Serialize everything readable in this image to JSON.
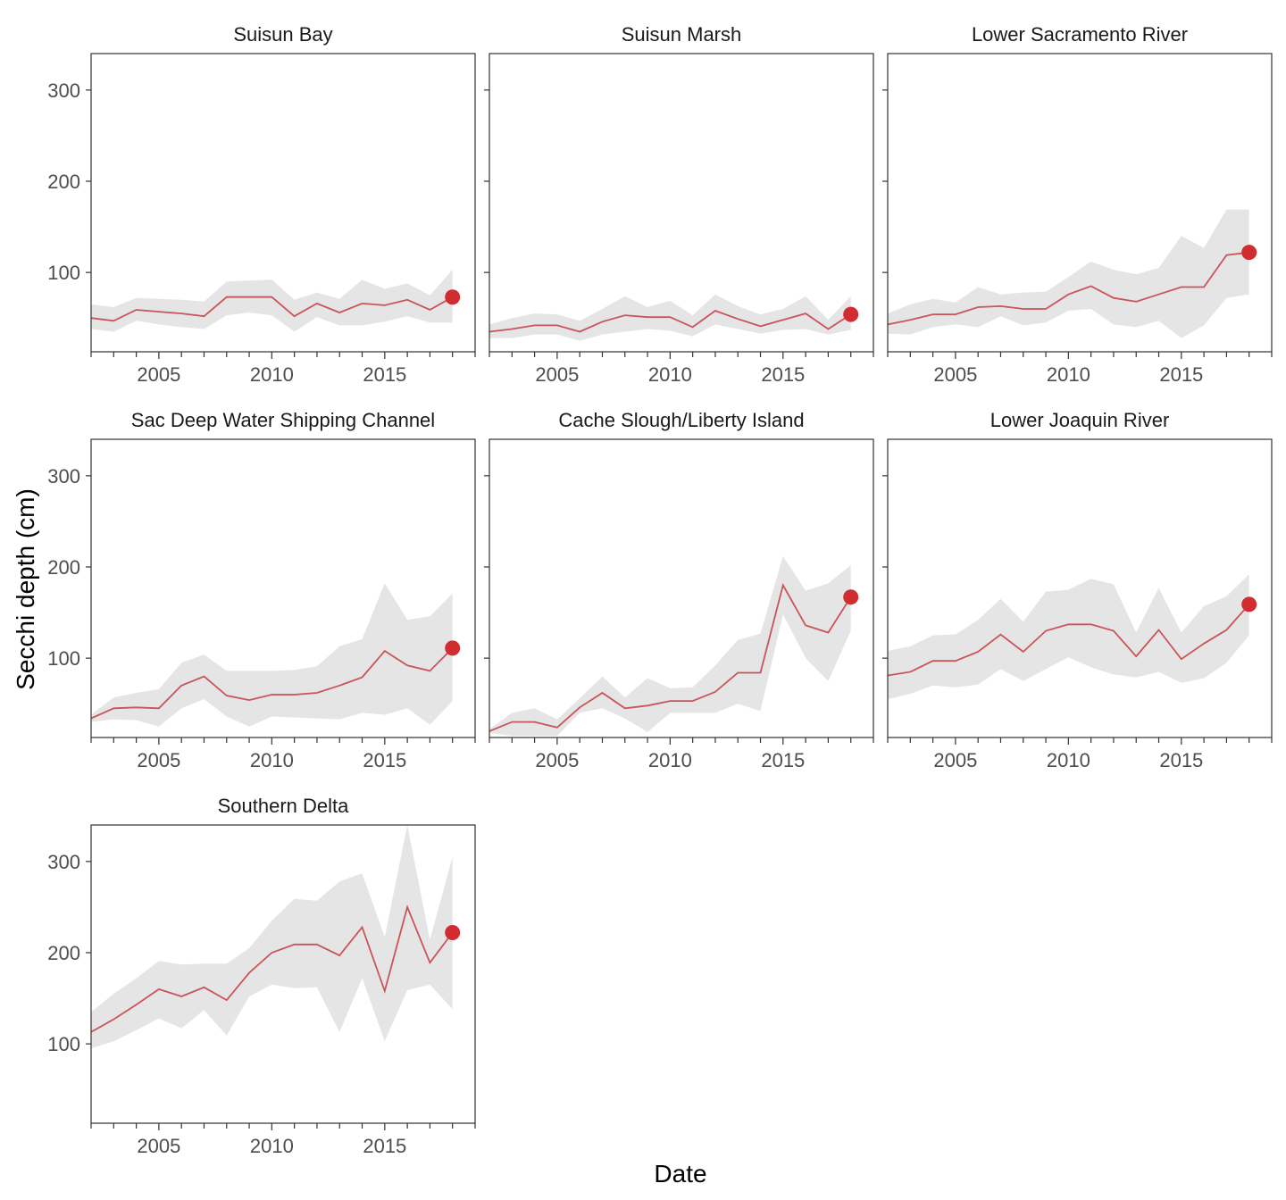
{
  "chart_data": {
    "type": "line",
    "facet_layout": "3 columns",
    "xlabel": "Date",
    "ylabel": "Secchi depth (cm)",
    "xlim": [
      2002,
      2019
    ],
    "ylim": [
      13,
      340
    ],
    "x_ticks": [
      2005,
      2010,
      2015
    ],
    "y_ticks": [
      100,
      200,
      300
    ],
    "grid": false,
    "colors": {
      "line": "#c9545a",
      "point": "#d12c2f",
      "band": "#e5e5e5",
      "frame": "#333333"
    },
    "x": [
      2002,
      2003,
      2004,
      2005,
      2006,
      2007,
      2008,
      2009,
      2010,
      2011,
      2012,
      2013,
      2014,
      2015,
      2016,
      2017,
      2018
    ],
    "panels": [
      {
        "title": "Suisun Bay",
        "values": [
          50,
          47,
          59,
          57,
          55,
          52,
          73,
          73,
          73,
          52,
          66,
          56,
          66,
          64,
          70,
          59,
          73
        ],
        "lower": [
          38,
          35,
          47,
          43,
          40,
          38,
          53,
          56,
          53,
          35,
          51,
          42,
          42,
          46,
          52,
          45,
          45
        ],
        "upper": [
          65,
          62,
          72,
          71,
          70,
          68,
          90,
          91,
          92,
          70,
          78,
          71,
          92,
          82,
          88,
          75,
          103
        ]
      },
      {
        "title": "Suisun Marsh",
        "values": [
          35,
          38,
          42,
          42,
          35,
          46,
          53,
          51,
          51,
          40,
          58,
          49,
          41,
          48,
          55,
          38,
          54
        ],
        "lower": [
          28,
          28,
          32,
          32,
          25,
          32,
          35,
          38,
          36,
          30,
          43,
          38,
          33,
          37,
          38,
          32,
          37
        ],
        "upper": [
          43,
          50,
          55,
          54,
          47,
          60,
          74,
          62,
          69,
          53,
          76,
          63,
          54,
          60,
          74,
          48,
          74
        ]
      },
      {
        "title": "Lower Sacramento River",
        "values": [
          43,
          48,
          54,
          54,
          62,
          63,
          60,
          60,
          76,
          85,
          72,
          68,
          76,
          84,
          84,
          119,
          122
        ],
        "lower": [
          33,
          32,
          40,
          43,
          40,
          52,
          42,
          45,
          58,
          60,
          43,
          40,
          47,
          28,
          42,
          72,
          76
        ],
        "upper": [
          55,
          65,
          71,
          67,
          84,
          76,
          78,
          79,
          95,
          112,
          103,
          98,
          105,
          140,
          127,
          169,
          169
        ]
      },
      {
        "title": "Sac Deep Water Shipping Channel",
        "values": [
          34,
          45,
          46,
          45,
          70,
          80,
          59,
          54,
          60,
          60,
          62,
          70,
          79,
          108,
          92,
          86,
          111
        ],
        "lower": [
          30,
          33,
          32,
          25,
          45,
          55,
          36,
          25,
          36,
          35,
          34,
          33,
          40,
          38,
          45,
          27,
          53
        ],
        "upper": [
          38,
          57,
          62,
          66,
          95,
          104,
          86,
          86,
          86,
          87,
          91,
          113,
          121,
          182,
          142,
          146,
          171
        ]
      },
      {
        "title": "Cache Slough/Liberty Island",
        "values": [
          20,
          30,
          30,
          24,
          46,
          62,
          45,
          48,
          53,
          53,
          63,
          84,
          84,
          180,
          136,
          128,
          167
        ],
        "lower": [
          18,
          15,
          15,
          15,
          40,
          45,
          34,
          19,
          40,
          40,
          40,
          50,
          42,
          148,
          100,
          75,
          130
        ],
        "upper": [
          22,
          40,
          45,
          33,
          56,
          80,
          57,
          78,
          67,
          68,
          92,
          120,
          127,
          212,
          174,
          182,
          202
        ]
      },
      {
        "title": "Lower Joaquin River",
        "values": [
          81,
          85,
          97,
          97,
          107,
          126,
          107,
          130,
          137,
          137,
          130,
          102,
          131,
          99,
          116,
          131,
          159
        ],
        "lower": [
          55,
          61,
          70,
          68,
          71,
          88,
          75,
          88,
          101,
          90,
          82,
          79,
          85,
          73,
          78,
          95,
          125
        ],
        "upper": [
          108,
          113,
          125,
          126,
          142,
          165,
          140,
          173,
          175,
          187,
          181,
          128,
          177,
          128,
          157,
          168,
          192
        ]
      },
      {
        "title": "Southern Delta",
        "values": [
          113,
          127,
          143,
          160,
          152,
          162,
          148,
          178,
          200,
          209,
          209,
          197,
          228,
          158,
          250,
          189,
          222
        ],
        "lower": [
          95,
          103,
          115,
          128,
          117,
          137,
          109,
          152,
          165,
          161,
          162,
          113,
          172,
          103,
          159,
          165,
          138
        ],
        "upper": [
          135,
          155,
          172,
          191,
          187,
          188,
          188,
          205,
          235,
          259,
          257,
          278,
          287,
          217,
          340,
          214,
          305
        ]
      }
    ]
  }
}
